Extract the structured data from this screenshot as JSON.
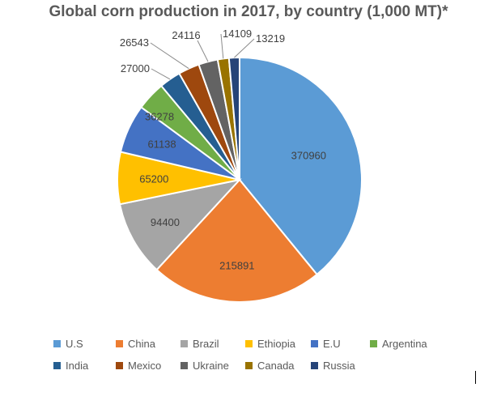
{
  "title": "Global corn production in 2017, by country (1,000 MT)*",
  "chart_data": {
    "type": "pie",
    "title": "Global corn production in 2017, by country (1,000 MT)*",
    "legend_placement": "bottom",
    "slices": [
      {
        "label": "U.S",
        "value": 370960,
        "color": "#5b9bd5"
      },
      {
        "label": "China",
        "value": 215891,
        "color": "#ed7d31"
      },
      {
        "label": "Brazil",
        "value": 94400,
        "color": "#a5a5a5"
      },
      {
        "label": "Ethiopia",
        "value": 65200,
        "color": "#ffc000"
      },
      {
        "label": "E.U",
        "value": 61138,
        "color": "#4472c4"
      },
      {
        "label": "Argentina",
        "value": 36278,
        "color": "#70ad47"
      },
      {
        "label": "India",
        "value": 27000,
        "color": "#255e91"
      },
      {
        "label": "Mexico",
        "value": 26543,
        "color": "#9e480e"
      },
      {
        "label": "Ukraine",
        "value": 24116,
        "color": "#636363"
      },
      {
        "label": "Canada",
        "value": 14109,
        "color": "#997300"
      },
      {
        "label": "Russia",
        "value": 13219,
        "color": "#264478"
      }
    ]
  }
}
